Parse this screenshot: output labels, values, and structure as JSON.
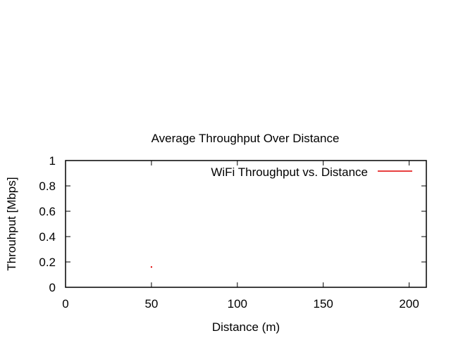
{
  "chart_data": {
    "type": "line",
    "title": "Average Throughput Over Distance",
    "xlabel": "Distance (m)",
    "ylabel": "Throuhput [Mbps]",
    "xlim": [
      0,
      210
    ],
    "ylim": [
      0,
      1
    ],
    "xticks": [
      0,
      50,
      100,
      150,
      200
    ],
    "yticks": [
      0,
      0.2,
      0.4,
      0.6,
      0.8,
      1
    ],
    "xtick_labels": [
      "0",
      "50",
      "100",
      "150",
      "200"
    ],
    "ytick_labels": [
      "0",
      "0.2",
      "0.4",
      "0.6",
      "0.8",
      "1"
    ],
    "grid": false,
    "legend_position": "top-right",
    "series": [
      {
        "name": "WiFi Throughput vs. Distance",
        "color": "#e00000",
        "x": [
          50
        ],
        "y": [
          0.16
        ]
      }
    ]
  }
}
